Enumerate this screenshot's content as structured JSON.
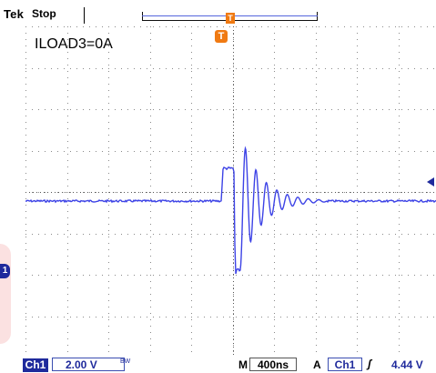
{
  "header": {
    "brand": "Tek",
    "acquisition_state": "Stop",
    "trigger_position_marker": "T",
    "trigger_marker": "T"
  },
  "screen": {
    "annotation": "ILOAD3=0A",
    "channel_marker": "1",
    "trace_color": "#3d43e6"
  },
  "status": {
    "channel": "Ch1",
    "vertical_scale": "2.00 V",
    "bandwidth_limit": "BW",
    "timebase_prefix": "M",
    "timebase": "400ns",
    "trigger_prefix": "A",
    "trigger_source": "Ch1",
    "trigger_slope": "ʃ",
    "trigger_level": "4.44 V"
  },
  "colors": {
    "trigger_orange": "#f07a12",
    "channel_blue": "#1f2a9c",
    "grid": "#8a8a8a"
  }
}
